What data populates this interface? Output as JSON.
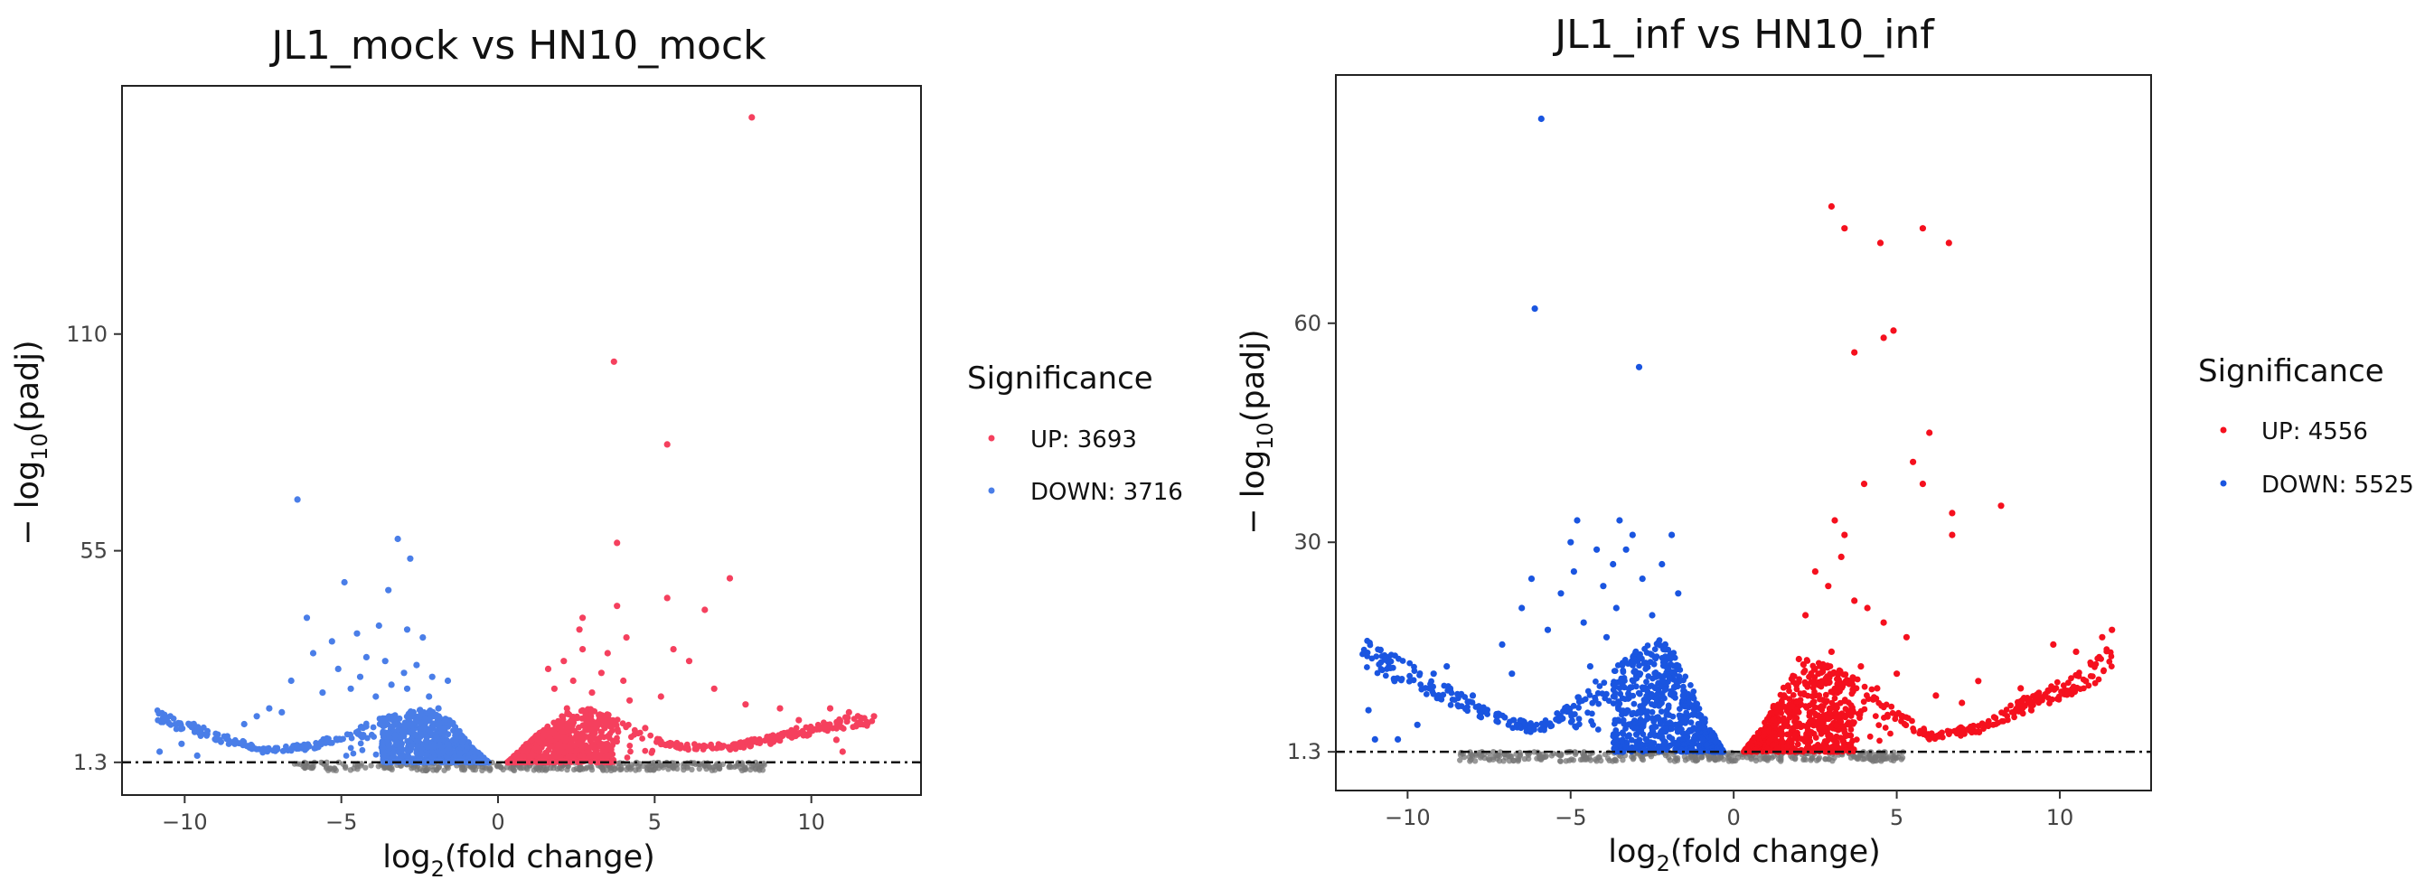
{
  "chart_data": [
    {
      "type": "scatter",
      "title": "JL1_mock vs HN10_mock",
      "xlabel": "log2(fold change)",
      "ylabel": "−log10(padj)",
      "xticks": [
        -10,
        -5,
        0,
        5,
        10
      ],
      "yticks": [
        1.3,
        55,
        110
      ],
      "xlim": [
        -12,
        13.5
      ],
      "ylim": [
        -7,
        173
      ],
      "threshold_y": 1.3,
      "legend": {
        "title": "Significance",
        "placement": "right"
      },
      "colors": {
        "up": "#f5405e",
        "down": "#4a7ee8",
        "ns": "#777777"
      },
      "series": [
        {
          "name": "UP: 3693",
          "color": "#f5405e",
          "points": [
            [
              8.1,
              165
            ],
            [
              3.7,
              103
            ],
            [
              5.4,
              82
            ],
            [
              3.8,
              57
            ],
            [
              7.4,
              48
            ],
            [
              5.4,
              43
            ],
            [
              6.6,
              40
            ],
            [
              3.8,
              41
            ],
            [
              2.7,
              38
            ],
            [
              2.6,
              35
            ],
            [
              4.1,
              33
            ],
            [
              5.6,
              30
            ],
            [
              2.7,
              30
            ],
            [
              3.5,
              29
            ],
            [
              6.1,
              27
            ],
            [
              2.1,
              27
            ],
            [
              1.6,
              25
            ],
            [
              3.3,
              24
            ],
            [
              4.0,
              22
            ],
            [
              2.4,
              22
            ],
            [
              6.9,
              20
            ],
            [
              1.8,
              20
            ],
            [
              3.0,
              19
            ],
            [
              5.2,
              18
            ],
            [
              4.2,
              17
            ],
            [
              7.9,
              16
            ],
            [
              9.0,
              15
            ],
            [
              2.2,
              15
            ],
            [
              10.6,
              15
            ],
            [
              11.2,
              14
            ],
            [
              12.0,
              13
            ],
            [
              9.6,
              12
            ],
            [
              10.8,
              7
            ],
            [
              11.0,
              4
            ],
            [
              2.9,
              12
            ],
            [
              4.7,
              10
            ],
            [
              3.3,
              9
            ],
            [
              2.5,
              8
            ],
            [
              8.7,
              6
            ],
            [
              9.5,
              8
            ]
          ]
        },
        {
          "name": "DOWN: 3716",
          "color": "#4a7ee8",
          "points": [
            [
              -6.4,
              68
            ],
            [
              -3.2,
              58
            ],
            [
              -2.8,
              53
            ],
            [
              -4.9,
              47
            ],
            [
              -3.5,
              45
            ],
            [
              -6.1,
              38
            ],
            [
              -3.8,
              36
            ],
            [
              -4.5,
              34
            ],
            [
              -5.3,
              32
            ],
            [
              -2.9,
              35
            ],
            [
              -2.4,
              33
            ],
            [
              -5.9,
              29
            ],
            [
              -4.2,
              28
            ],
            [
              -3.6,
              27
            ],
            [
              -2.6,
              26
            ],
            [
              -5.1,
              25
            ],
            [
              -3.0,
              24
            ],
            [
              -4.4,
              23
            ],
            [
              -2.1,
              23
            ],
            [
              -6.6,
              22
            ],
            [
              -3.4,
              21
            ],
            [
              -4.7,
              20
            ],
            [
              -2.9,
              20
            ],
            [
              -1.6,
              22
            ],
            [
              -5.6,
              19
            ],
            [
              -3.9,
              18
            ],
            [
              -2.2,
              18
            ],
            [
              -6.9,
              14
            ],
            [
              -7.3,
              15
            ],
            [
              -8.1,
              11
            ],
            [
              -7.7,
              13
            ],
            [
              -1.9,
              15
            ],
            [
              -2.7,
              14
            ],
            [
              -9.0,
              7
            ],
            [
              -10.1,
              6
            ],
            [
              -10.8,
              4
            ],
            [
              -9.6,
              3
            ],
            [
              -8.4,
              6
            ]
          ]
        }
      ],
      "envelope": {
        "up": [
          [
            0.3,
            1.3
          ],
          [
            0.9,
            6
          ],
          [
            1.5,
            10
          ],
          [
            2.2,
            14
          ],
          [
            3.0,
            15
          ],
          [
            4.0,
            12
          ],
          [
            5.0,
            8
          ],
          [
            6.0,
            6
          ],
          [
            7.5,
            6
          ],
          [
            9.0,
            9
          ],
          [
            10.5,
            12
          ],
          [
            12.0,
            14
          ]
        ],
        "down": [
          [
            -0.3,
            1.3
          ],
          [
            -0.9,
            6
          ],
          [
            -1.5,
            12
          ],
          [
            -2.2,
            15
          ],
          [
            -3.0,
            14
          ],
          [
            -4.0,
            12
          ],
          [
            -5.0,
            9
          ],
          [
            -6.0,
            6
          ],
          [
            -7.5,
            5
          ],
          [
            -9.0,
            9
          ],
          [
            -10.0,
            12
          ],
          [
            -10.9,
            15
          ]
        ]
      },
      "ns_range": [
        -6.5,
        8.5
      ]
    },
    {
      "type": "scatter",
      "title": "JL1_inf vs HN10_inf",
      "xlabel": "log2(fold change)",
      "ylabel": "−log10(padj)",
      "xticks": [
        -10,
        -5,
        0,
        5,
        10
      ],
      "yticks": [
        1.3,
        30,
        60
      ],
      "xlim": [
        -12.2,
        12.8
      ],
      "ylim": [
        -4,
        94
      ],
      "threshold_y": 1.3,
      "legend": {
        "title": "Significance",
        "placement": "right"
      },
      "colors": {
        "up": "#f5101e",
        "down": "#1a55e0",
        "ns": "#777777"
      },
      "series": [
        {
          "name": "UP: 4556",
          "color": "#f5101e",
          "points": [
            [
              3.0,
              76
            ],
            [
              3.4,
              73
            ],
            [
              5.8,
              73
            ],
            [
              6.6,
              71
            ],
            [
              4.5,
              71
            ],
            [
              4.9,
              59
            ],
            [
              4.6,
              58
            ],
            [
              3.7,
              56
            ],
            [
              6.0,
              45
            ],
            [
              5.5,
              41
            ],
            [
              4.0,
              38
            ],
            [
              5.8,
              38
            ],
            [
              6.7,
              34
            ],
            [
              8.2,
              35
            ],
            [
              6.7,
              31
            ],
            [
              3.1,
              33
            ],
            [
              3.4,
              31
            ],
            [
              3.3,
              28
            ],
            [
              2.5,
              26
            ],
            [
              2.9,
              24
            ],
            [
              3.7,
              22
            ],
            [
              4.1,
              21
            ],
            [
              2.2,
              20
            ],
            [
              4.6,
              19
            ],
            [
              5.3,
              17
            ],
            [
              3.0,
              15
            ],
            [
              2.0,
              14
            ],
            [
              7.5,
              11
            ],
            [
              8.8,
              10
            ],
            [
              9.8,
              16
            ],
            [
              10.5,
              15
            ],
            [
              11.3,
              17
            ],
            [
              11.6,
              18
            ],
            [
              10.8,
              11
            ],
            [
              3.9,
              13
            ],
            [
              5.0,
              12
            ],
            [
              2.6,
              12
            ],
            [
              6.2,
              9
            ],
            [
              7.0,
              8
            ],
            [
              4.4,
              10
            ]
          ]
        },
        {
          "name": "DOWN: 5525",
          "color": "#1a55e0",
          "points": [
            [
              -5.9,
              88
            ],
            [
              -6.1,
              62
            ],
            [
              -2.9,
              54
            ],
            [
              -4.8,
              33
            ],
            [
              -3.5,
              33
            ],
            [
              -3.1,
              31
            ],
            [
              -1.9,
              31
            ],
            [
              -5.0,
              30
            ],
            [
              -4.2,
              29
            ],
            [
              -3.3,
              29
            ],
            [
              -2.2,
              27
            ],
            [
              -3.7,
              27
            ],
            [
              -4.9,
              26
            ],
            [
              -2.8,
              25
            ],
            [
              -6.2,
              25
            ],
            [
              -4.0,
              24
            ],
            [
              -5.3,
              23
            ],
            [
              -1.7,
              23
            ],
            [
              -6.5,
              21
            ],
            [
              -3.6,
              21
            ],
            [
              -7.1,
              16
            ],
            [
              -2.5,
              20
            ],
            [
              -4.6,
              19
            ],
            [
              -5.7,
              18
            ],
            [
              -3.9,
              17
            ],
            [
              -8.8,
              13
            ],
            [
              -9.2,
              12
            ],
            [
              -10.4,
              11
            ],
            [
              -11.2,
              7
            ],
            [
              -11.0,
              3
            ],
            [
              -10.3,
              3
            ],
            [
              -8.0,
              9
            ],
            [
              -2.1,
              16
            ],
            [
              -3.0,
              15
            ],
            [
              -6.8,
              12
            ],
            [
              -4.4,
              13
            ],
            [
              -7.6,
              7
            ],
            [
              -9.7,
              5
            ]
          ]
        }
      ],
      "envelope": {
        "up": [
          [
            0.3,
            1.3
          ],
          [
            0.9,
            5
          ],
          [
            1.5,
            10
          ],
          [
            2.2,
            14
          ],
          [
            3.0,
            13
          ],
          [
            4.0,
            11
          ],
          [
            5.0,
            7
          ],
          [
            6.0,
            4
          ],
          [
            7.5,
            5
          ],
          [
            9.0,
            9
          ],
          [
            10.5,
            12
          ],
          [
            11.6,
            16
          ]
        ],
        "down": [
          [
            -0.3,
            1.3
          ],
          [
            -0.9,
            6
          ],
          [
            -1.5,
            13
          ],
          [
            -2.2,
            17
          ],
          [
            -3.0,
            15
          ],
          [
            -4.0,
            12
          ],
          [
            -5.0,
            8
          ],
          [
            -6.0,
            5
          ],
          [
            -7.5,
            7
          ],
          [
            -9.0,
            11
          ],
          [
            -10.5,
            15
          ],
          [
            -11.4,
            17
          ]
        ]
      },
      "ns_range": [
        -8.5,
        5.5
      ]
    }
  ]
}
